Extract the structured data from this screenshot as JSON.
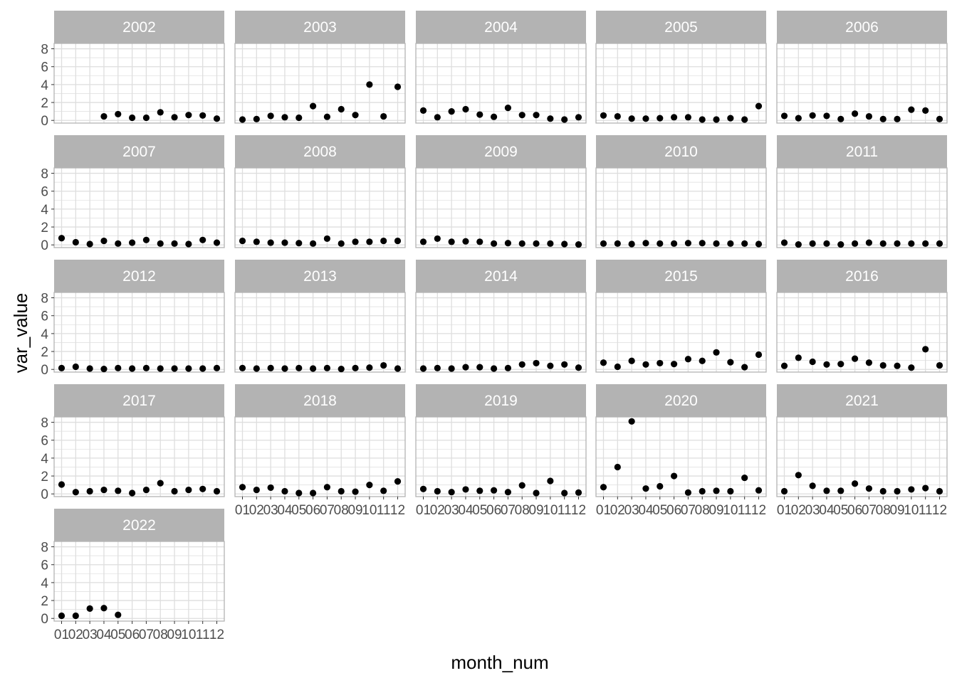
{
  "chart_data": {
    "type": "scatter",
    "facet_by": "year",
    "xlabel": "month_num",
    "ylabel": "var_value",
    "x_categories": [
      "01",
      "02",
      "03",
      "04",
      "05",
      "06",
      "07",
      "08",
      "09",
      "10",
      "11",
      "12"
    ],
    "y_ticks": [
      0,
      2,
      4,
      6,
      8
    ],
    "ylim": [
      -0.3,
      8.6
    ],
    "ncol": 5,
    "grid": true,
    "colors": {
      "strip_bg": "#b3b3b3",
      "strip_text": "#ffffff",
      "grid": "#dedede",
      "border": "#b3b3b3",
      "point": "#000000",
      "tick_text": "#4d4d4d"
    },
    "facets": [
      {
        "year": "2002",
        "values": [
          null,
          null,
          null,
          0.45,
          0.7,
          0.3,
          0.3,
          0.9,
          0.35,
          0.6,
          0.55,
          0.2
        ]
      },
      {
        "year": "2003",
        "values": [
          0.1,
          0.15,
          0.5,
          0.35,
          0.3,
          1.6,
          0.4,
          1.25,
          0.6,
          4.0,
          0.45,
          3.75
        ]
      },
      {
        "year": "2004",
        "values": [
          1.1,
          0.35,
          1.0,
          1.25,
          0.65,
          0.4,
          1.4,
          0.6,
          0.6,
          0.2,
          0.1,
          0.35
        ]
      },
      {
        "year": "2005",
        "values": [
          0.55,
          0.45,
          0.2,
          0.2,
          0.25,
          0.35,
          0.35,
          0.1,
          0.1,
          0.25,
          0.1,
          1.6
        ]
      },
      {
        "year": "2006",
        "values": [
          0.5,
          0.25,
          0.55,
          0.5,
          0.15,
          0.75,
          0.45,
          0.15,
          0.15,
          1.2,
          1.1,
          0.15
        ]
      },
      {
        "year": "2007",
        "values": [
          0.75,
          0.3,
          0.1,
          0.45,
          0.15,
          0.25,
          0.55,
          0.15,
          0.15,
          0.1,
          0.55,
          0.25
        ]
      },
      {
        "year": "2008",
        "values": [
          0.45,
          0.35,
          0.25,
          0.25,
          0.2,
          0.15,
          0.7,
          0.15,
          0.35,
          0.35,
          0.45,
          0.45
        ]
      },
      {
        "year": "2009",
        "values": [
          0.35,
          0.7,
          0.35,
          0.4,
          0.35,
          0.15,
          0.2,
          0.15,
          0.15,
          0.15,
          0.1,
          0.05
        ]
      },
      {
        "year": "2010",
        "values": [
          0.15,
          0.15,
          0.1,
          0.2,
          0.15,
          0.15,
          0.2,
          0.2,
          0.15,
          0.15,
          0.15,
          0.1
        ]
      },
      {
        "year": "2011",
        "values": [
          0.25,
          0.05,
          0.15,
          0.15,
          0.05,
          0.15,
          0.25,
          0.15,
          0.15,
          0.15,
          0.15,
          0.15
        ]
      },
      {
        "year": "2012",
        "values": [
          0.15,
          0.3,
          0.1,
          0.05,
          0.15,
          0.1,
          0.15,
          0.1,
          0.1,
          0.1,
          0.1,
          0.15
        ]
      },
      {
        "year": "2013",
        "values": [
          0.15,
          0.1,
          0.15,
          0.1,
          0.15,
          0.1,
          0.15,
          0.05,
          0.15,
          0.2,
          0.45,
          0.1
        ]
      },
      {
        "year": "2014",
        "values": [
          0.1,
          0.15,
          0.1,
          0.25,
          0.25,
          0.1,
          0.15,
          0.55,
          0.7,
          0.4,
          0.55,
          0.2
        ]
      },
      {
        "year": "2015",
        "values": [
          0.75,
          0.3,
          0.95,
          0.55,
          0.7,
          0.6,
          1.15,
          0.95,
          1.9,
          0.8,
          0.25,
          1.65
        ]
      },
      {
        "year": "2016",
        "values": [
          0.4,
          1.3,
          0.85,
          0.55,
          0.6,
          1.2,
          0.75,
          0.45,
          0.4,
          0.2,
          2.25,
          0.45
        ]
      },
      {
        "year": "2017",
        "values": [
          1.05,
          0.2,
          0.3,
          0.45,
          0.35,
          0.1,
          0.45,
          1.2,
          0.3,
          0.45,
          0.55,
          0.3
        ]
      },
      {
        "year": "2018",
        "values": [
          0.75,
          0.45,
          0.7,
          0.3,
          0.1,
          0.1,
          0.75,
          0.3,
          0.25,
          1.0,
          0.35,
          1.4
        ]
      },
      {
        "year": "2019",
        "values": [
          0.55,
          0.3,
          0.2,
          0.5,
          0.35,
          0.4,
          0.2,
          0.95,
          0.1,
          1.45,
          0.1,
          0.15
        ]
      },
      {
        "year": "2020",
        "values": [
          0.75,
          3.0,
          8.1,
          0.6,
          0.85,
          2.0,
          0.15,
          0.3,
          0.35,
          0.3,
          1.8,
          0.4
        ]
      },
      {
        "year": "2021",
        "values": [
          0.3,
          2.1,
          0.9,
          0.35,
          0.35,
          1.15,
          0.6,
          0.3,
          0.3,
          0.5,
          0.65,
          0.3
        ]
      },
      {
        "year": "2022",
        "values": [
          0.3,
          0.3,
          1.1,
          1.15,
          0.4,
          null,
          null,
          null,
          null,
          null,
          null,
          null
        ]
      }
    ]
  }
}
